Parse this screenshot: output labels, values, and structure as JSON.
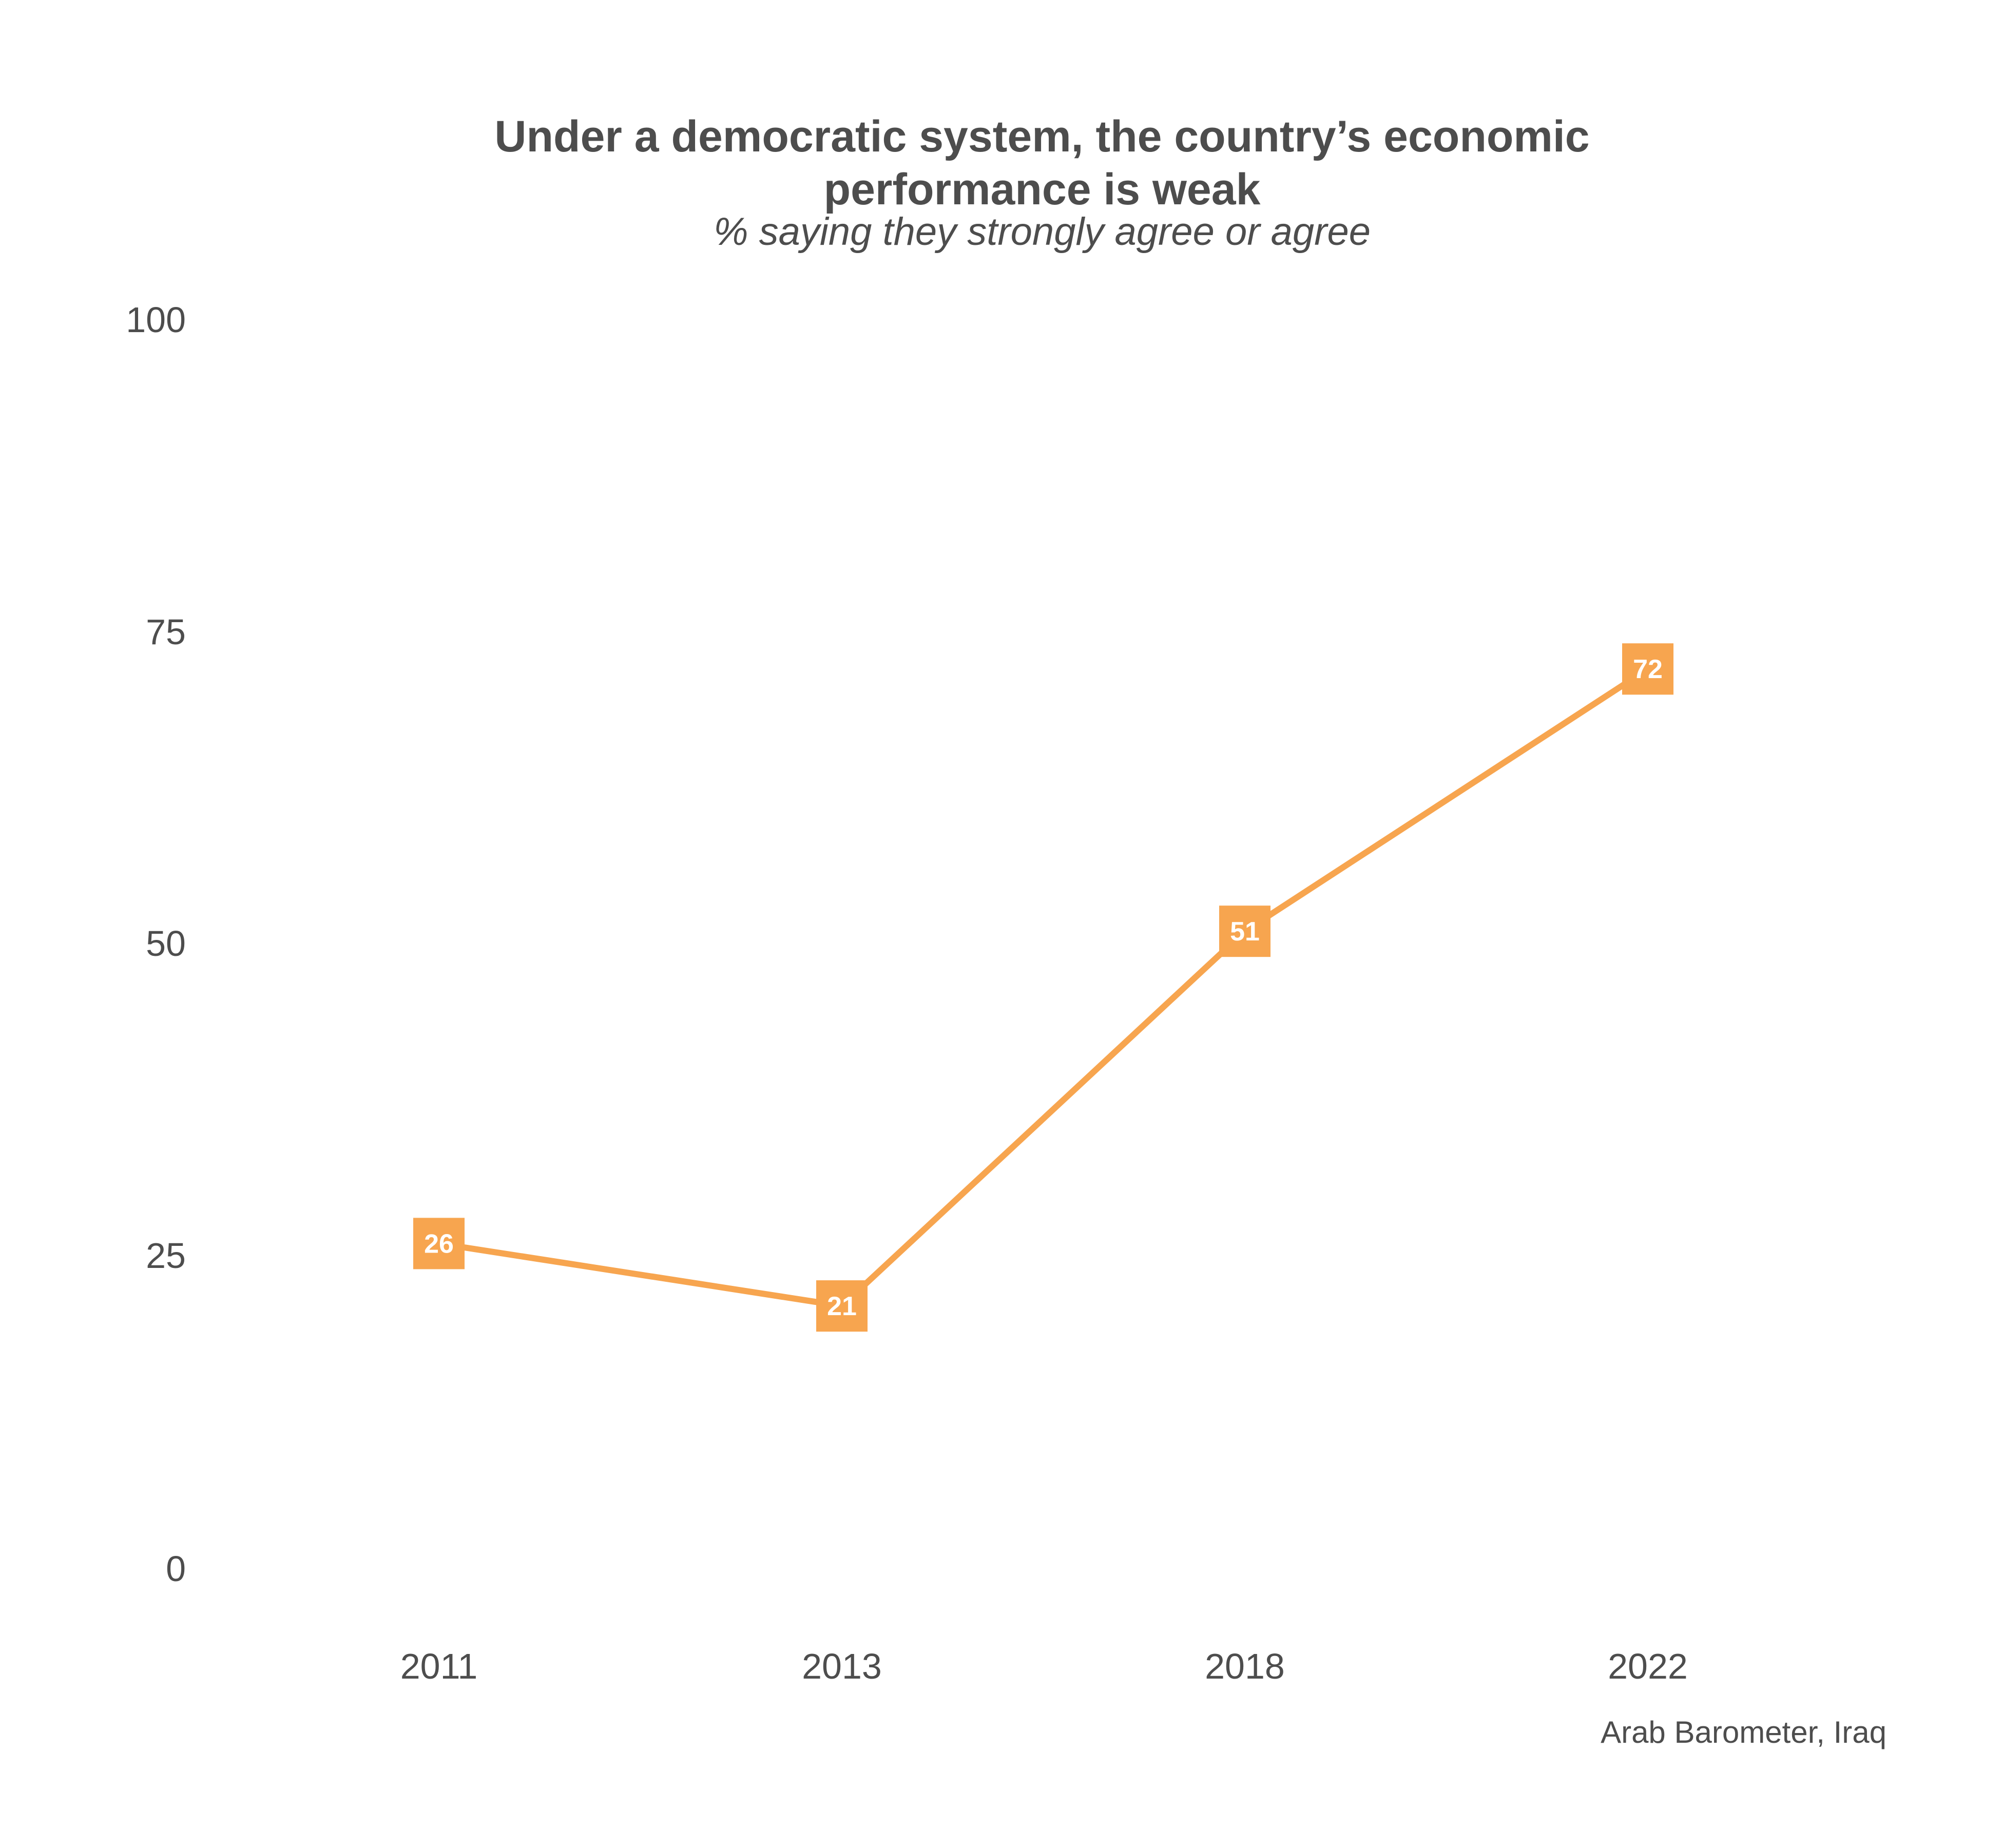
{
  "chart_data": {
    "type": "line",
    "title_line1": "Under a democratic system, the country’s economic",
    "title_line2": "performance is weak",
    "subtitle": "% saying they strongly agree or agree",
    "caption": "Arab Barometer, Iraq",
    "categories": [
      "2011",
      "2013",
      "2018",
      "2022"
    ],
    "series": [
      {
        "values": [
          26,
          21,
          51,
          72
        ]
      }
    ],
    "data_labels": [
      "26",
      "21",
      "51",
      "72"
    ],
    "y_ticks": [
      "0",
      "25",
      "50",
      "75",
      "100"
    ],
    "ylim": [
      0,
      100
    ],
    "grid": false,
    "legend": "none",
    "color": "#F7A54F"
  }
}
